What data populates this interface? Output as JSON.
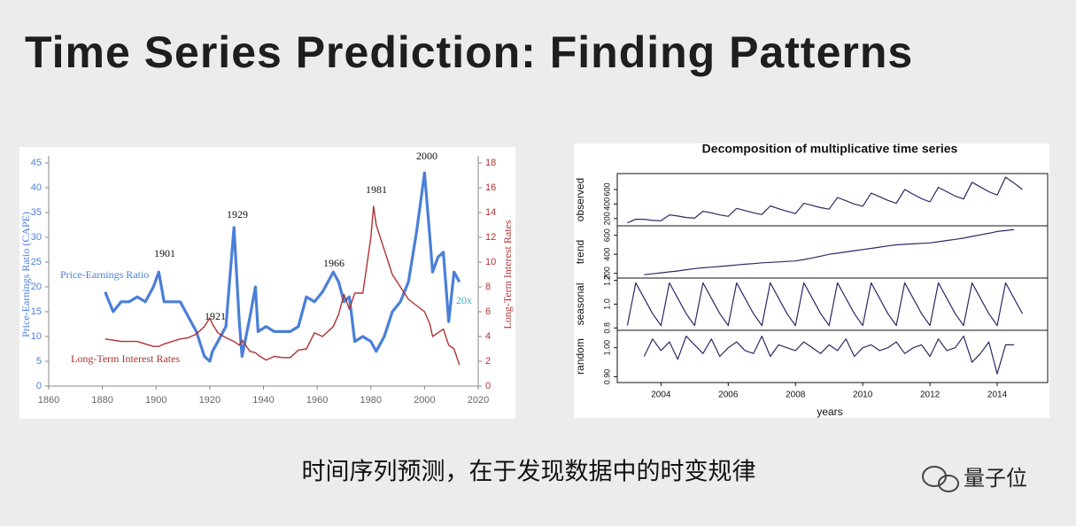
{
  "title": "Time Series Prediction: Finding Patterns",
  "caption": "时间序列预测，在于发现数据中的时变规律",
  "watermark": "量子位",
  "chart_data": [
    {
      "type": "line",
      "ylabel": "Price-Earnings Ratio (CAPE)",
      "y2label": "Long-Term Interest Rates",
      "x": [
        1881,
        1884,
        1887,
        1890,
        1893,
        1896,
        1899,
        1901,
        1903,
        1906,
        1909,
        1912,
        1915,
        1918,
        1920,
        1921,
        1923,
        1926,
        1929,
        1931,
        1932,
        1935,
        1937,
        1938,
        1941,
        1944,
        1947,
        1950,
        1953,
        1956,
        1959,
        1962,
        1966,
        1968,
        1970,
        1972,
        1974,
        1977,
        1980,
        1981,
        1982,
        1985,
        1988,
        1991,
        1994,
        1997,
        2000,
        2002,
        2003,
        2005,
        2007,
        2009,
        2011,
        2013
      ],
      "series": [
        {
          "name": "Price-Earnings Ratio",
          "color": "#4a7fd8",
          "values": [
            19,
            15,
            17,
            17,
            18,
            17,
            20,
            23,
            17,
            17,
            17,
            14,
            11,
            6,
            5,
            7,
            9,
            12,
            32,
            13,
            6,
            14,
            20,
            11,
            12,
            11,
            11,
            11,
            12,
            18,
            17,
            19,
            23,
            21,
            17,
            18,
            9,
            10,
            9,
            8,
            7,
            10,
            15,
            17,
            21,
            31,
            43,
            30,
            23,
            26,
            27,
            13,
            23,
            21
          ]
        },
        {
          "name": "Long-Term Interest Rates",
          "color": "#b03232",
          "axis": "y2",
          "values": [
            3.8,
            3.7,
            3.6,
            3.6,
            3.6,
            3.4,
            3.2,
            3.2,
            3.4,
            3.6,
            3.8,
            3.9,
            4.2,
            4.8,
            5.5,
            5.0,
            4.3,
            3.9,
            3.6,
            3.3,
            3.7,
            2.8,
            2.7,
            2.5,
            2.1,
            2.4,
            2.3,
            2.3,
            2.9,
            3.0,
            4.3,
            4.0,
            4.8,
            5.8,
            7.4,
            6.2,
            7.5,
            7.5,
            12,
            14.5,
            13,
            11,
            9,
            8,
            7,
            6.5,
            6,
            5,
            4,
            4.3,
            4.6,
            3.3,
            3,
            1.7
          ]
        }
      ],
      "annotations": [
        "1901",
        "1921",
        "1929",
        "1966",
        "1981",
        "2000",
        "20x"
      ],
      "xlim": [
        1860,
        2020
      ],
      "xticks": [
        1860,
        1880,
        1900,
        1920,
        1940,
        1960,
        1980,
        2000,
        2020
      ],
      "ylim": [
        0,
        45
      ],
      "yticks": [
        0,
        5,
        10,
        15,
        20,
        25,
        30,
        35,
        40,
        45
      ],
      "y2lim": [
        0,
        18
      ],
      "y2ticks": [
        0,
        2,
        4,
        6,
        8,
        10,
        12,
        14,
        16,
        18
      ]
    },
    {
      "type": "decomposition",
      "title": "Decomposition of multiplicative time series",
      "xlabel": "years",
      "color": "#2a2a66",
      "x": [
        2003,
        2003.25,
        2003.5,
        2003.75,
        2004,
        2004.25,
        2004.5,
        2004.75,
        2005,
        2005.25,
        2005.5,
        2005.75,
        2006,
        2006.25,
        2006.5,
        2006.75,
        2007,
        2007.25,
        2007.5,
        2007.75,
        2008,
        2008.25,
        2008.5,
        2008.75,
        2009,
        2009.25,
        2009.5,
        2009.75,
        2010,
        2010.25,
        2010.5,
        2010.75,
        2011,
        2011.25,
        2011.5,
        2011.75,
        2012,
        2012.25,
        2012.5,
        2012.75,
        2013,
        2013.25,
        2013.5,
        2013.75,
        2014,
        2014.25,
        2014.5,
        2014.75
      ],
      "xlim": [
        2002.7,
        2015.5
      ],
      "xticks": [
        2004,
        2006,
        2008,
        2010,
        2012,
        2014
      ],
      "panels": [
        {
          "name": "observed",
          "ylim": [
            100,
            820
          ],
          "yticks": [
            200,
            400,
            600
          ],
          "values": [
            140,
            190,
            190,
            175,
            170,
            250,
            235,
            215,
            205,
            300,
            280,
            250,
            230,
            340,
            310,
            280,
            255,
            375,
            335,
            300,
            270,
            410,
            380,
            350,
            330,
            490,
            445,
            400,
            370,
            550,
            500,
            450,
            410,
            600,
            535,
            475,
            430,
            630,
            570,
            510,
            470,
            700,
            635,
            570,
            525,
            770,
            690,
            600
          ]
        },
        {
          "name": "trend",
          "ylim": [
            150,
            700
          ],
          "yticks": [
            200,
            400,
            600
          ],
          "values": [
            null,
            null,
            185,
            195,
            205,
            215,
            225,
            238,
            250,
            258,
            265,
            272,
            280,
            288,
            295,
            302,
            310,
            315,
            320,
            325,
            330,
            345,
            362,
            380,
            400,
            412,
            425,
            438,
            450,
            462,
            475,
            488,
            500,
            505,
            510,
            515,
            520,
            532,
            545,
            557,
            570,
            588,
            605,
            622,
            640,
            650,
            660,
            null
          ]
        },
        {
          "name": "seasonal",
          "ylim": [
            0.78,
            1.22
          ],
          "yticks": [
            0.8,
            {
              "value": 1.0,
              "label": "1.0"
            },
            1.2
          ],
          "values": [
            0.82,
            1.18,
            1.05,
            0.92,
            0.82,
            1.18,
            1.05,
            0.92,
            0.82,
            1.18,
            1.05,
            0.92,
            0.82,
            1.18,
            1.05,
            0.92,
            0.82,
            1.18,
            1.05,
            0.92,
            0.82,
            1.18,
            1.05,
            0.92,
            0.82,
            1.18,
            1.05,
            0.92,
            0.82,
            1.18,
            1.05,
            0.92,
            0.82,
            1.18,
            1.05,
            0.92,
            0.82,
            1.18,
            1.05,
            0.92,
            0.82,
            1.18,
            1.05,
            0.92,
            0.82,
            1.18,
            1.05,
            0.92
          ]
        },
        {
          "name": "random",
          "ylim": [
            0.88,
            1.06
          ],
          "yticks": [
            {
              "value": 0.9,
              "label": "0.90"
            },
            {
              "value": 1,
              "label": "1.00"
            }
          ],
          "values": [
            null,
            null,
            0.97,
            1.03,
            0.99,
            1.02,
            0.96,
            1.04,
            1.01,
            0.98,
            1.03,
            0.97,
            1.0,
            1.02,
            0.99,
            0.98,
            1.04,
            0.97,
            1.01,
            1.0,
            0.99,
            1.02,
            1.0,
            0.98,
            1.01,
            0.99,
            1.03,
            0.97,
            1.0,
            1.01,
            0.99,
            1.0,
            1.02,
            0.98,
            1.0,
            1.01,
            0.97,
            1.03,
            0.99,
            1.0,
            1.04,
            0.95,
            0.98,
            1.02,
            0.91,
            1.01,
            1.01,
            null
          ]
        }
      ]
    }
  ]
}
